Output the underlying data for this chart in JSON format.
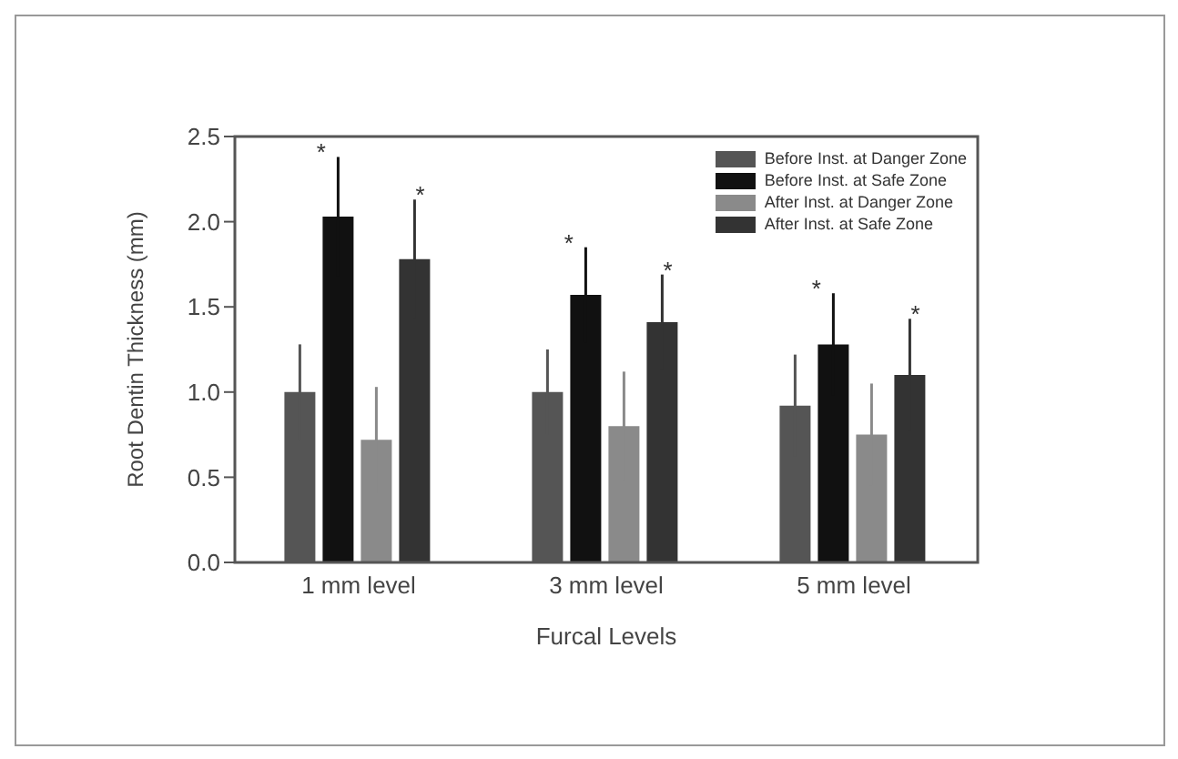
{
  "chart_data": {
    "type": "bar",
    "xlabel": "Furcal Levels",
    "ylabel": "Root Dentin Thickness (mm)",
    "categories": [
      "1 mm level",
      "3 mm level",
      "5 mm level"
    ],
    "series": [
      {
        "name": "Before Inst. at Danger Zone",
        "color": "#555555",
        "values": [
          1.0,
          1.0,
          0.92
        ],
        "errors": [
          0.28,
          0.25,
          0.3
        ]
      },
      {
        "name": "Before Inst. at Safe Zone",
        "color": "#111111",
        "values": [
          2.03,
          1.57,
          1.28
        ],
        "errors": [
          0.35,
          0.28,
          0.3
        ]
      },
      {
        "name": "After Inst. at Danger Zone",
        "color": "#8a8a8a",
        "values": [
          0.72,
          0.8,
          0.75
        ],
        "errors": [
          0.31,
          0.32,
          0.3
        ]
      },
      {
        "name": "After Inst. at Safe Zone",
        "color": "#333333",
        "values": [
          1.78,
          1.41,
          1.1
        ],
        "errors": [
          0.35,
          0.28,
          0.33
        ]
      }
    ],
    "ylim": [
      0,
      2.5
    ],
    "yticks": [
      {
        "value": 0,
        "label": "0.0"
      },
      {
        "value": 0.5,
        "label": "0.5"
      },
      {
        "value": 1,
        "label": "1.0"
      },
      {
        "value": 1.5,
        "label": "1.5"
      },
      {
        "value": 2,
        "label": "2.0"
      },
      {
        "value": 2.5,
        "label": "2.5"
      }
    ],
    "annotations": [
      "*",
      "*",
      "*",
      "*",
      "*",
      "*"
    ],
    "legend": "top right",
    "grid": false
  }
}
